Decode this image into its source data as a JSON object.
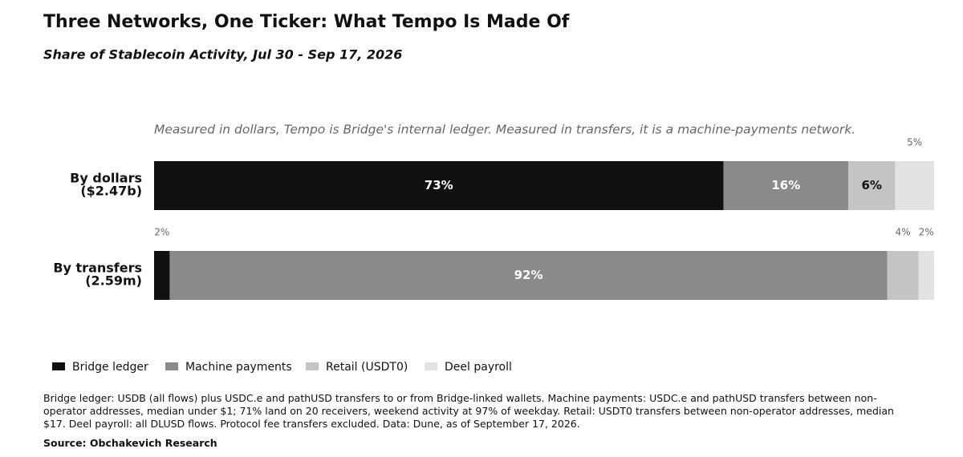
{
  "chart_data": {
    "type": "stacked_bar_horizontal",
    "title": "Three Networks, One Ticker: What Tempo Is Made Of",
    "subtitle": "Share of Stablecoin Activity, Jul 30 - Sep 17, 2026",
    "annotation": "Measured in dollars, Tempo is Bridge's internal ledger. Measured in transfers, it is a machine-payments network.",
    "categories": [
      [
        "By dollars",
        "($2.47b)"
      ],
      [
        "By transfers",
        "(2.59m)"
      ]
    ],
    "xlim": [
      0,
      100
    ],
    "series": [
      {
        "name": "Bridge ledger",
        "color": "#111111",
        "values": [
          73,
          2
        ],
        "value_labels": [
          "73%",
          "2%"
        ]
      },
      {
        "name": "Machine payments",
        "color": "#8a8a8a",
        "values": [
          16,
          92
        ],
        "value_labels": [
          "16%",
          "92%"
        ]
      },
      {
        "name": "Retail (USDT0)",
        "color": "#c4c4c4",
        "values": [
          6,
          4
        ],
        "value_labels": [
          "6%",
          "4%"
        ]
      },
      {
        "name": "Deel payroll",
        "color": "#e2e2e2",
        "values": [
          5,
          2
        ],
        "value_labels": [
          "5%",
          "2%"
        ]
      }
    ],
    "legend": "bottom-left",
    "notes": "Bridge ledger: USDB (all flows) plus USDC.e and pathUSD transfers to or from Bridge-linked wallets. Machine payments: USDC.e and pathUSD transfers between non-operator addresses, median under $1; 71% land on 20 receivers, weekend activity at 97% of weekday. Retail: USDT0 transfers between non-operator addresses, median $17. Deel payroll: all DLUSD flows. Protocol fee transfers excluded. Data: Dune, as of September 17, 2026.",
    "source": "Source: Obchakevich Research"
  }
}
